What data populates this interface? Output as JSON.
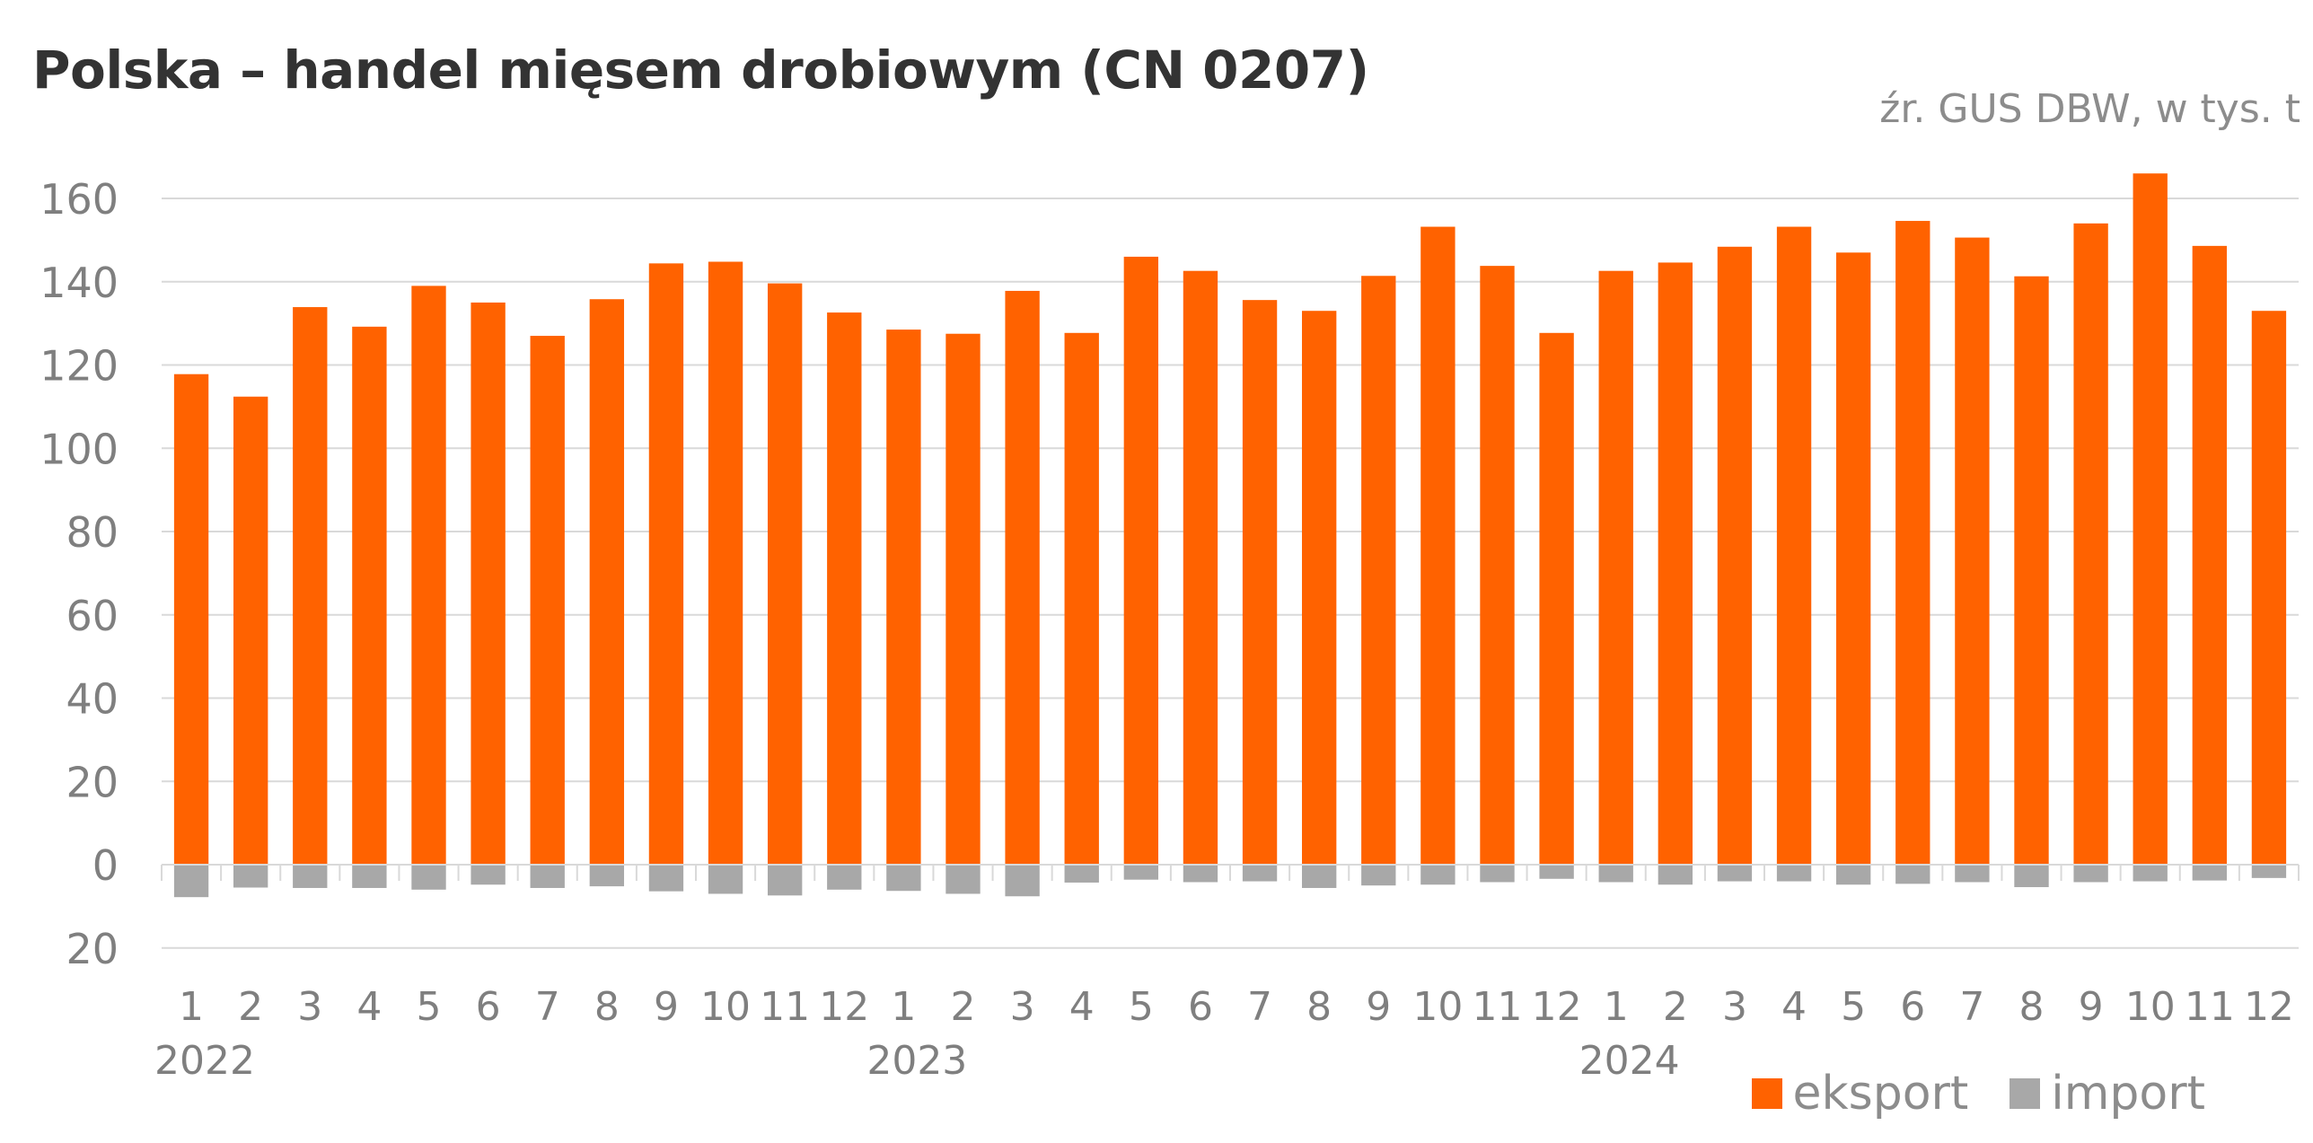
{
  "chart_data": {
    "type": "bar",
    "title": "Polska – handel mięsem drobiowym (CN 0207)",
    "subtitle": "źr. GUS DBW, w tys. t",
    "ylim": [
      -20,
      170
    ],
    "yticks": [
      {
        "value": 160,
        "label": "160"
      },
      {
        "value": 140,
        "label": "140"
      },
      {
        "value": 120,
        "label": "120"
      },
      {
        "value": 100,
        "label": "100"
      },
      {
        "value": 80,
        "label": "80"
      },
      {
        "value": 60,
        "label": "60"
      },
      {
        "value": 40,
        "label": "40"
      },
      {
        "value": 20,
        "label": "20"
      },
      {
        "value": 0,
        "label": "0"
      },
      {
        "value": -20,
        "label": "20"
      }
    ],
    "categories": [
      "1",
      "2",
      "3",
      "4",
      "5",
      "6",
      "7",
      "8",
      "9",
      "10",
      "11",
      "12",
      "1",
      "2",
      "3",
      "4",
      "5",
      "6",
      "7",
      "8",
      "9",
      "10",
      "11",
      "12",
      "1",
      "2",
      "3",
      "4",
      "5",
      "6",
      "7",
      "8",
      "9",
      "10",
      "11",
      "12"
    ],
    "year_labels": [
      {
        "label": "2022",
        "index": 0
      },
      {
        "label": "2023",
        "index": 12
      },
      {
        "label": "2024",
        "index": 24
      }
    ],
    "grid": true,
    "legend_position": "bottom-right",
    "series": [
      {
        "name": "eksport",
        "color": "#ff6200",
        "values": [
          117.8,
          112.4,
          133.9,
          129.2,
          139.0,
          135.0,
          127.0,
          135.8,
          144.4,
          144.8,
          139.6,
          132.6,
          128.5,
          127.5,
          137.8,
          127.7,
          146.0,
          142.6,
          135.6,
          133.0,
          141.4,
          153.2,
          143.8,
          127.7,
          142.6,
          144.6,
          148.4,
          153.2,
          147.0,
          154.6,
          150.6,
          141.3,
          154.0,
          166.0,
          148.6,
          133.0
        ]
      },
      {
        "name": "import",
        "color": "#a8a8a8",
        "values": [
          -7.8,
          -5.5,
          -5.6,
          -5.6,
          -6.0,
          -4.8,
          -5.6,
          -5.2,
          -6.4,
          -7.0,
          -7.4,
          -6.0,
          -6.3,
          -7.0,
          -7.6,
          -4.3,
          -3.6,
          -4.2,
          -4.0,
          -5.6,
          -5.0,
          -4.8,
          -4.2,
          -3.4,
          -4.2,
          -4.8,
          -4.0,
          -4.0,
          -4.8,
          -4.6,
          -4.2,
          -5.4,
          -4.2,
          -4.0,
          -3.8,
          -3.2
        ]
      }
    ]
  }
}
